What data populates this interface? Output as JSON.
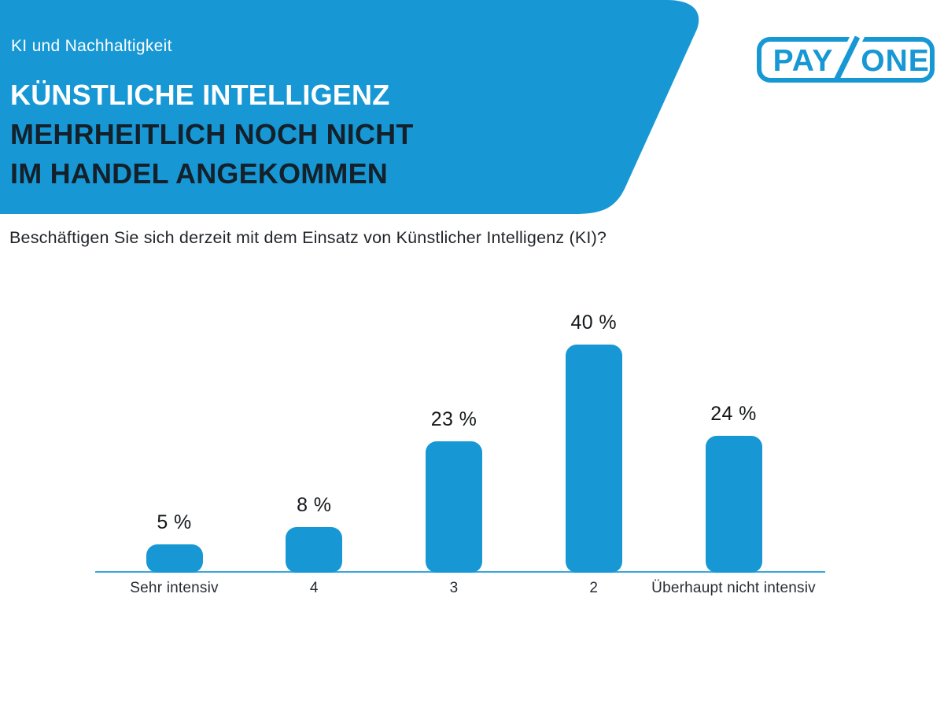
{
  "header": {
    "eyebrow": "KI und Nachhaltigkeit",
    "title_line1": "KÜNSTLICHE INTELLIGENZ",
    "title_line2": "MEHRHEITLICH NOCH NICHT",
    "title_line3": "IM HANDEL ANGEKOMMEN",
    "banner_color": "#1798D5",
    "title_light_color": "#FFFFFF",
    "title_dark_color": "#14202A"
  },
  "logo": {
    "name": "PAYONE",
    "brand_left": "PAY",
    "brand_right": "ONE",
    "color": "#1798D5"
  },
  "question": "Beschäftigen Sie sich derzeit mit dem Einsatz von Künstlicher Intelligenz (KI)?",
  "chart_data": {
    "type": "bar",
    "title": "Beschäftigen Sie sich derzeit mit dem Einsatz von Künstlicher Intelligenz (KI)?",
    "categories": [
      "Sehr intensiv",
      "4",
      "3",
      "2",
      "Überhaupt nicht intensiv"
    ],
    "values": [
      5,
      8,
      23,
      40,
      24
    ],
    "value_labels": [
      "5 %",
      "8 %",
      "23 %",
      "40 %",
      "24 %"
    ],
    "unit": "%",
    "xlabel": "",
    "ylabel": "",
    "ylim": [
      0,
      45
    ],
    "grid": false,
    "legend": "none",
    "bar_color": "#1798D5",
    "axis_color": "#1798D5",
    "value_label_color": "#15181B",
    "category_label_color": "#272D33"
  }
}
